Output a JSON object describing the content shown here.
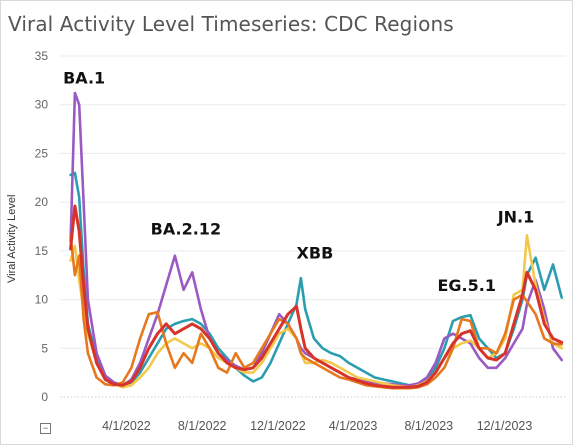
{
  "chart_data": {
    "type": "line",
    "title": "Viral Activity Level Timeseries: CDC Regions",
    "ylabel": "Viral Activity Level",
    "xlabel": "",
    "ylim": [
      0,
      35
    ],
    "y_ticks": [
      0,
      5,
      10,
      15,
      20,
      25,
      30,
      35
    ],
    "x_ticks": [
      "4/1/2022",
      "8/1/2022",
      "12/1/2022",
      "4/1/2023",
      "8/1/2023",
      "12/1/2023"
    ],
    "x_range": [
      "2021-12-15",
      "2024-03-09"
    ],
    "grid": true,
    "legend": "none",
    "colors": [
      "#2a9db0",
      "#9b59c2",
      "#f2c94c",
      "#e6781e",
      "#d8332a"
    ],
    "annotations": [
      {
        "label": "BA.1",
        "x": "2021-12-20",
        "y": 32.2
      },
      {
        "label": "BA.2.12",
        "x": "2022-05-10",
        "y": 16.7
      },
      {
        "label": "XBB",
        "x": "2022-12-31",
        "y": 14.2
      },
      {
        "label": "EG.5.1",
        "x": "2023-08-15",
        "y": 10.9
      },
      {
        "label": "JN.1",
        "x": "2023-11-20",
        "y": 17.9
      }
    ],
    "series": [
      {
        "color": "#2a9db0",
        "x": [
          "2022-01-01",
          "2022-01-08",
          "2022-01-15",
          "2022-01-22",
          "2022-01-29",
          "2022-02-12",
          "2022-02-26",
          "2022-03-12",
          "2022-03-26",
          "2022-04-09",
          "2022-04-23",
          "2022-05-07",
          "2022-05-21",
          "2022-06-04",
          "2022-06-18",
          "2022-07-02",
          "2022-07-16",
          "2022-07-30",
          "2022-08-13",
          "2022-08-27",
          "2022-09-10",
          "2022-09-24",
          "2022-10-08",
          "2022-10-22",
          "2022-11-05",
          "2022-11-19",
          "2022-12-03",
          "2022-12-17",
          "2022-12-31",
          "2023-01-07",
          "2023-01-14",
          "2023-01-28",
          "2023-02-11",
          "2023-02-25",
          "2023-03-11",
          "2023-03-25",
          "2023-04-08",
          "2023-04-22",
          "2023-05-06",
          "2023-05-20",
          "2023-06-03",
          "2023-06-17",
          "2023-07-01",
          "2023-07-15",
          "2023-07-29",
          "2023-08-12",
          "2023-08-26",
          "2023-09-09",
          "2023-09-23",
          "2023-10-07",
          "2023-10-21",
          "2023-11-04",
          "2023-11-18",
          "2023-12-02",
          "2023-12-16",
          "2023-12-30",
          "2024-01-06",
          "2024-01-20",
          "2024-02-03",
          "2024-02-17",
          "2024-03-02"
        ],
        "y": [
          22.8,
          23.0,
          20.5,
          13.0,
          7.5,
          4.0,
          2.0,
          1.4,
          1.2,
          1.5,
          2.5,
          4.0,
          5.5,
          7.0,
          7.5,
          7.8,
          8.0,
          7.5,
          6.5,
          5.0,
          4.0,
          3.0,
          2.2,
          1.6,
          2.0,
          3.5,
          5.5,
          7.5,
          9.5,
          12.2,
          9.0,
          6.0,
          5.0,
          4.5,
          4.2,
          3.5,
          3.0,
          2.5,
          2.0,
          1.8,
          1.6,
          1.4,
          1.2,
          1.3,
          1.8,
          3.0,
          5.0,
          7.8,
          8.2,
          8.4,
          6.0,
          5.0,
          4.0,
          4.5,
          7.0,
          10.0,
          12.5,
          14.3,
          11.0,
          13.6,
          10.2
        ]
      },
      {
        "color": "#9b59c2",
        "x": [
          "2022-01-01",
          "2022-01-08",
          "2022-01-15",
          "2022-01-22",
          "2022-01-29",
          "2022-02-12",
          "2022-02-26",
          "2022-03-12",
          "2022-03-26",
          "2022-04-09",
          "2022-04-23",
          "2022-05-07",
          "2022-05-21",
          "2022-06-04",
          "2022-06-18",
          "2022-07-02",
          "2022-07-16",
          "2022-07-30",
          "2022-08-13",
          "2022-08-27",
          "2022-09-10",
          "2022-09-24",
          "2022-10-08",
          "2022-10-22",
          "2022-11-05",
          "2022-11-19",
          "2022-12-03",
          "2022-12-17",
          "2022-12-31",
          "2023-01-07",
          "2023-01-14",
          "2023-01-28",
          "2023-02-11",
          "2023-02-25",
          "2023-03-11",
          "2023-03-25",
          "2023-04-08",
          "2023-04-22",
          "2023-05-06",
          "2023-05-20",
          "2023-06-03",
          "2023-06-17",
          "2023-07-01",
          "2023-07-15",
          "2023-07-29",
          "2023-08-12",
          "2023-08-26",
          "2023-09-09",
          "2023-09-23",
          "2023-10-07",
          "2023-10-21",
          "2023-11-04",
          "2023-11-18",
          "2023-12-02",
          "2023-12-16",
          "2023-12-30",
          "2024-01-06",
          "2024-01-20",
          "2024-02-03",
          "2024-02-17",
          "2024-03-02"
        ],
        "y": [
          16.0,
          31.2,
          30.0,
          20.0,
          10.0,
          4.5,
          2.2,
          1.5,
          1.2,
          1.8,
          3.5,
          6.0,
          8.5,
          11.5,
          14.5,
          11.0,
          12.8,
          9.0,
          6.0,
          4.5,
          3.8,
          3.2,
          2.8,
          3.0,
          4.5,
          6.5,
          8.5,
          7.5,
          6.0,
          5.0,
          4.5,
          4.0,
          3.5,
          3.0,
          2.5,
          2.0,
          1.8,
          1.6,
          1.5,
          1.4,
          1.3,
          1.2,
          1.2,
          1.4,
          2.0,
          3.5,
          6.0,
          6.5,
          6.0,
          5.5,
          4.0,
          3.0,
          3.0,
          4.0,
          5.5,
          7.0,
          9.5,
          12.0,
          9.0,
          5.0,
          3.8
        ]
      },
      {
        "color": "#f2c94c",
        "x": [
          "2022-01-01",
          "2022-01-08",
          "2022-01-15",
          "2022-01-22",
          "2022-01-29",
          "2022-02-12",
          "2022-02-26",
          "2022-03-12",
          "2022-03-26",
          "2022-04-09",
          "2022-04-23",
          "2022-05-07",
          "2022-05-21",
          "2022-06-04",
          "2022-06-18",
          "2022-07-02",
          "2022-07-16",
          "2022-07-30",
          "2022-08-13",
          "2022-08-27",
          "2022-09-10",
          "2022-09-24",
          "2022-10-08",
          "2022-10-22",
          "2022-11-05",
          "2022-11-19",
          "2022-12-03",
          "2022-12-17",
          "2022-12-31",
          "2023-01-07",
          "2023-01-14",
          "2023-01-28",
          "2023-02-11",
          "2023-02-25",
          "2023-03-11",
          "2023-03-25",
          "2023-04-08",
          "2023-04-22",
          "2023-05-06",
          "2023-05-20",
          "2023-06-03",
          "2023-06-17",
          "2023-07-01",
          "2023-07-15",
          "2023-07-29",
          "2023-08-12",
          "2023-08-26",
          "2023-09-09",
          "2023-09-23",
          "2023-10-07",
          "2023-10-21",
          "2023-11-04",
          "2023-11-18",
          "2023-12-02",
          "2023-12-16",
          "2023-12-30",
          "2024-01-06",
          "2024-01-20",
          "2024-02-03",
          "2024-02-17",
          "2024-03-02"
        ],
        "y": [
          14.0,
          15.5,
          12.0,
          9.0,
          6.5,
          3.5,
          1.8,
          1.3,
          1.0,
          1.2,
          2.0,
          3.0,
          4.5,
          5.5,
          6.0,
          5.5,
          5.0,
          5.5,
          5.0,
          4.0,
          3.5,
          3.0,
          2.5,
          2.5,
          3.5,
          5.0,
          6.5,
          7.0,
          6.0,
          4.5,
          3.5,
          3.5,
          3.8,
          3.5,
          3.0,
          2.5,
          2.0,
          1.8,
          1.6,
          1.4,
          1.2,
          1.1,
          1.0,
          1.2,
          1.6,
          2.5,
          4.0,
          5.0,
          5.5,
          5.8,
          5.0,
          4.0,
          4.5,
          6.0,
          10.5,
          11.0,
          16.6,
          11.5,
          8.0,
          5.5,
          5.0
        ]
      },
      {
        "color": "#e6781e",
        "x": [
          "2022-01-01",
          "2022-01-08",
          "2022-01-15",
          "2022-01-22",
          "2022-01-29",
          "2022-02-12",
          "2022-02-26",
          "2022-03-12",
          "2022-03-26",
          "2022-04-09",
          "2022-04-23",
          "2022-05-07",
          "2022-05-21",
          "2022-06-04",
          "2022-06-18",
          "2022-07-02",
          "2022-07-16",
          "2022-07-30",
          "2022-08-13",
          "2022-08-27",
          "2022-09-10",
          "2022-09-24",
          "2022-10-08",
          "2022-10-22",
          "2022-11-05",
          "2022-11-19",
          "2022-12-03",
          "2022-12-17",
          "2022-12-31",
          "2023-01-07",
          "2023-01-14",
          "2023-01-28",
          "2023-02-11",
          "2023-02-25",
          "2023-03-11",
          "2023-03-25",
          "2023-04-08",
          "2023-04-22",
          "2023-05-06",
          "2023-05-20",
          "2023-06-03",
          "2023-06-17",
          "2023-07-01",
          "2023-07-15",
          "2023-07-29",
          "2023-08-12",
          "2023-08-26",
          "2023-09-09",
          "2023-09-23",
          "2023-10-07",
          "2023-10-21",
          "2023-11-04",
          "2023-11-18",
          "2023-12-02",
          "2023-12-16",
          "2023-12-30",
          "2024-01-06",
          "2024-01-20",
          "2024-02-03",
          "2024-02-17",
          "2024-03-02"
        ],
        "y": [
          16.5,
          12.5,
          14.5,
          8.0,
          4.5,
          2.0,
          1.3,
          1.2,
          1.5,
          3.0,
          6.0,
          8.5,
          8.7,
          5.5,
          3.0,
          4.5,
          3.5,
          6.5,
          5.0,
          3.0,
          2.5,
          4.5,
          3.0,
          3.5,
          5.0,
          6.5,
          8.0,
          7.5,
          6.0,
          4.5,
          4.0,
          3.5,
          3.0,
          2.5,
          2.0,
          1.8,
          1.5,
          1.2,
          1.1,
          1.0,
          0.9,
          0.9,
          0.9,
          1.0,
          1.3,
          2.0,
          3.0,
          5.0,
          8.0,
          7.8,
          5.0,
          5.0,
          4.5,
          6.5,
          10.0,
          10.5,
          9.8,
          8.5,
          6.0,
          5.5,
          5.4
        ]
      },
      {
        "color": "#d8332a",
        "x": [
          "2022-01-01",
          "2022-01-08",
          "2022-01-15",
          "2022-01-22",
          "2022-01-29",
          "2022-02-12",
          "2022-02-26",
          "2022-03-12",
          "2022-03-26",
          "2022-04-09",
          "2022-04-23",
          "2022-05-07",
          "2022-05-21",
          "2022-06-04",
          "2022-06-18",
          "2022-07-02",
          "2022-07-16",
          "2022-07-30",
          "2022-08-13",
          "2022-08-27",
          "2022-09-10",
          "2022-09-24",
          "2022-10-08",
          "2022-10-22",
          "2022-11-05",
          "2022-11-19",
          "2022-12-03",
          "2022-12-17",
          "2022-12-31",
          "2023-01-07",
          "2023-01-14",
          "2023-01-28",
          "2023-02-11",
          "2023-02-25",
          "2023-03-11",
          "2023-03-25",
          "2023-04-08",
          "2023-04-22",
          "2023-05-06",
          "2023-05-20",
          "2023-06-03",
          "2023-06-17",
          "2023-07-01",
          "2023-07-15",
          "2023-07-29",
          "2023-08-12",
          "2023-08-26",
          "2023-09-09",
          "2023-09-23",
          "2023-10-07",
          "2023-10-21",
          "2023-11-04",
          "2023-11-18",
          "2023-12-02",
          "2023-12-16",
          "2023-12-30",
          "2024-01-06",
          "2024-01-20",
          "2024-02-03",
          "2024-02-17",
          "2024-03-02"
        ],
        "y": [
          15.2,
          19.6,
          17.0,
          11.5,
          7.0,
          3.5,
          1.8,
          1.3,
          1.2,
          1.6,
          3.0,
          5.0,
          6.5,
          7.5,
          6.5,
          7.0,
          7.5,
          7.0,
          6.0,
          4.5,
          3.5,
          3.0,
          2.8,
          3.0,
          4.0,
          5.5,
          7.0,
          8.5,
          9.3,
          7.0,
          5.0,
          4.0,
          3.5,
          3.0,
          2.5,
          2.0,
          1.7,
          1.4,
          1.2,
          1.1,
          1.0,
          1.0,
          1.0,
          1.1,
          1.5,
          2.5,
          4.0,
          5.5,
          6.5,
          6.8,
          5.0,
          4.0,
          3.8,
          4.5,
          7.5,
          10.5,
          12.8,
          11.0,
          7.5,
          6.0,
          5.6
        ]
      }
    ]
  },
  "ui": {
    "collapse_symbol": "−"
  }
}
